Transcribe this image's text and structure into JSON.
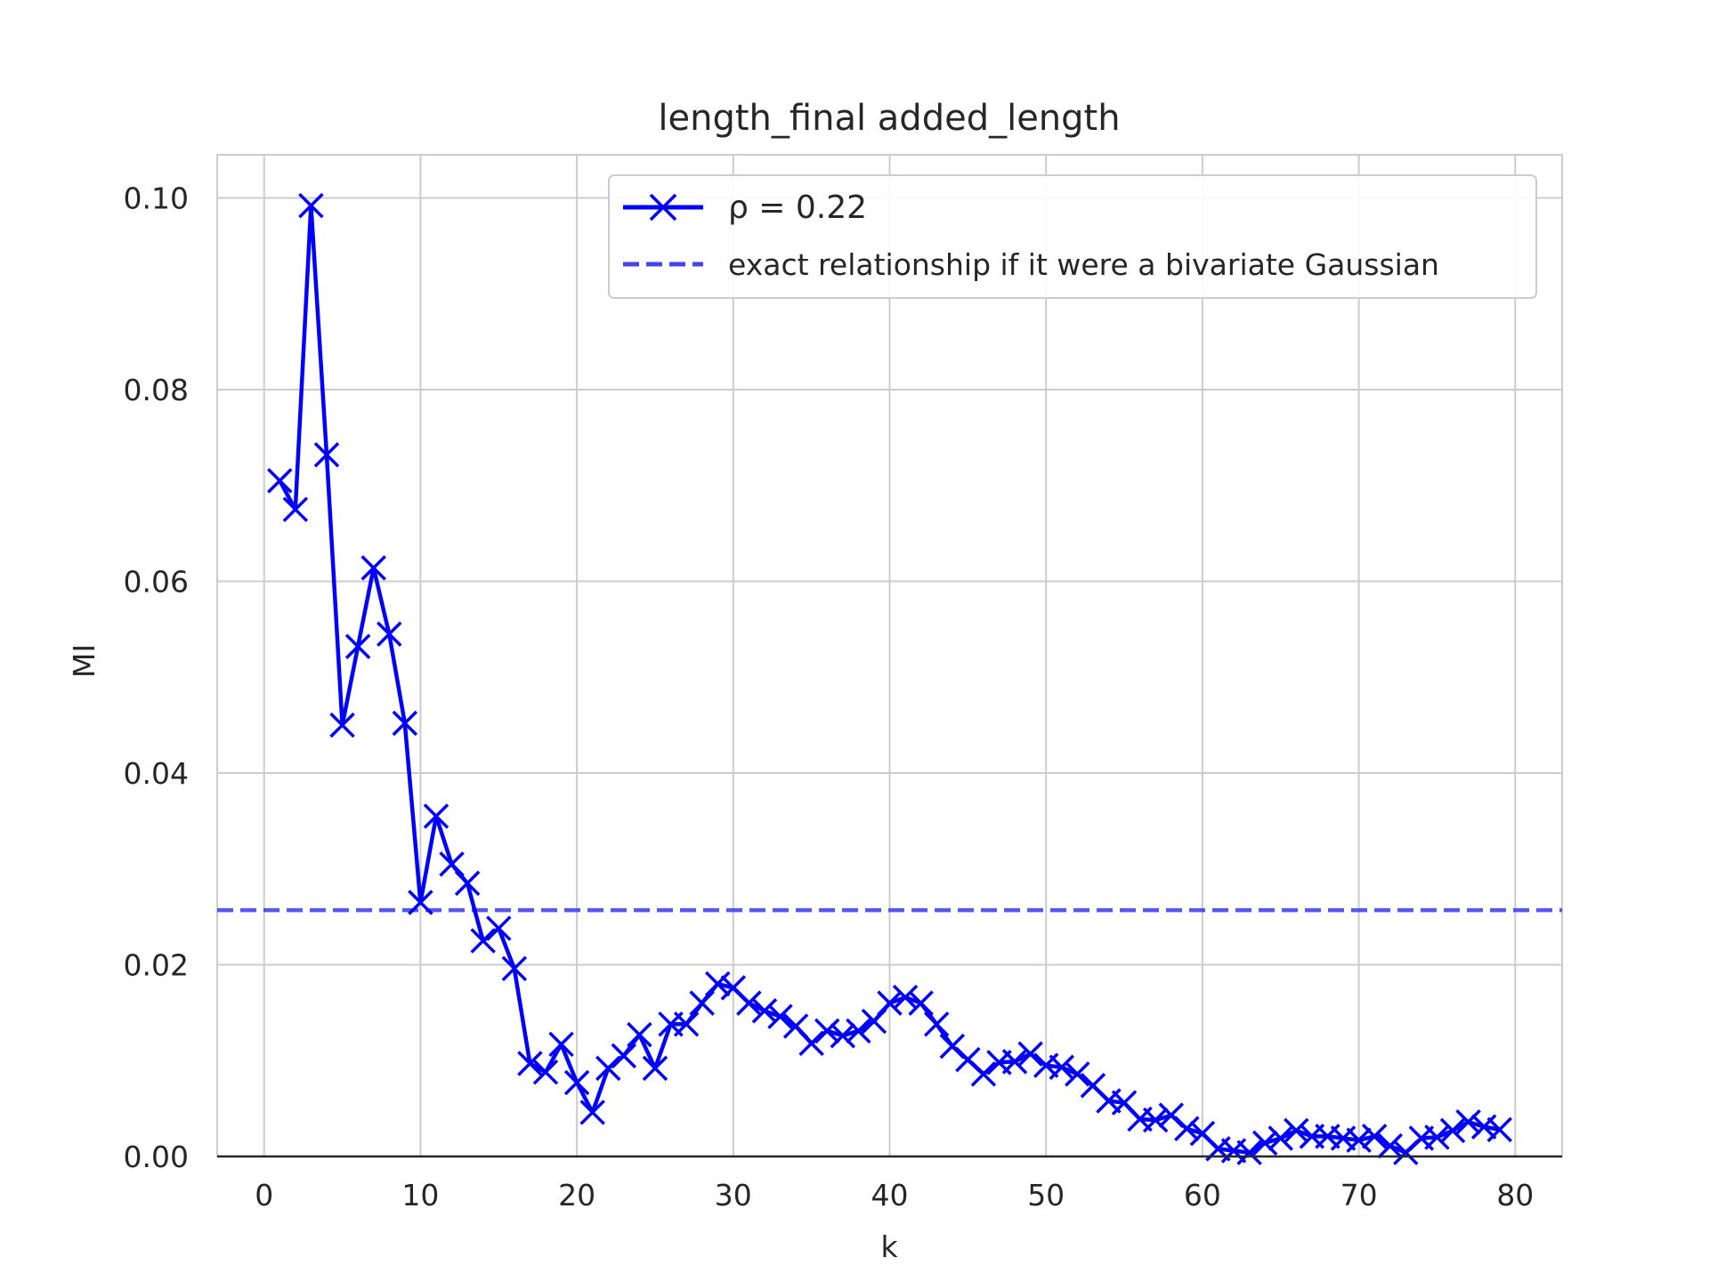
{
  "chart_data": {
    "type": "line",
    "title": "length_final added_length",
    "xlabel": "k",
    "ylabel": "MI",
    "xlim": [
      -3,
      83
    ],
    "ylim": [
      0.0,
      0.1045
    ],
    "xticks": [
      0,
      10,
      20,
      30,
      40,
      50,
      60,
      70,
      80
    ],
    "yticks": [
      0.0,
      0.02,
      0.04,
      0.06,
      0.08,
      0.1
    ],
    "xtick_labels": [
      "0",
      "10",
      "20",
      "30",
      "40",
      "50",
      "60",
      "70",
      "80"
    ],
    "ytick_labels": [
      "0.00",
      "0.02",
      "0.04",
      "0.06",
      "0.08",
      "0.10"
    ],
    "grid": true,
    "legend_position": "top-right",
    "series": [
      {
        "name": "ρ = 0.22",
        "style": "solid line with x markers",
        "color": "#0000ff",
        "x": [
          1,
          2,
          3,
          4,
          5,
          6,
          7,
          8,
          9,
          10,
          11,
          12,
          13,
          14,
          15,
          16,
          17,
          18,
          19,
          20,
          21,
          22,
          23,
          24,
          25,
          26,
          27,
          28,
          29,
          30,
          31,
          32,
          33,
          34,
          35,
          36,
          37,
          38,
          39,
          40,
          41,
          42,
          43,
          44,
          45,
          46,
          47,
          48,
          49,
          50,
          51,
          52,
          53,
          54,
          55,
          56,
          57,
          58,
          59,
          60,
          61,
          62,
          63,
          64,
          65,
          66,
          67,
          68,
          69,
          70,
          71,
          72,
          73,
          74,
          75,
          76,
          77,
          78,
          79
        ],
        "y": [
          0.0705,
          0.0675,
          0.0992,
          0.0732,
          0.045,
          0.0532,
          0.0614,
          0.0545,
          0.0452,
          0.0265,
          0.0355,
          0.0305,
          0.0285,
          0.0225,
          0.0238,
          0.0196,
          0.0097,
          0.0088,
          0.0117,
          0.0077,
          0.0046,
          0.0092,
          0.0105,
          0.0127,
          0.0092,
          0.0138,
          0.0138,
          0.016,
          0.018,
          0.0176,
          0.016,
          0.0152,
          0.0146,
          0.0136,
          0.0118,
          0.0131,
          0.0126,
          0.0131,
          0.0141,
          0.016,
          0.0166,
          0.016,
          0.0138,
          0.0115,
          0.0101,
          0.0086,
          0.0098,
          0.0099,
          0.0107,
          0.0095,
          0.0093,
          0.0086,
          0.0074,
          0.0058,
          0.0056,
          0.0039,
          0.0038,
          0.0043,
          0.0029,
          0.0024,
          0.0008,
          0.0006,
          0.0004,
          0.0014,
          0.0019,
          0.0027,
          0.0021,
          0.0021,
          0.0019,
          0.0017,
          0.0021,
          0.0011,
          0.0004,
          0.0019,
          0.002,
          0.0027,
          0.0036,
          0.0031,
          0.0028
        ]
      },
      {
        "name": "exact relationship if it were a bivariate Gaussian",
        "style": "dashed horizontal line",
        "color": "#4444ee",
        "value": 0.0257
      }
    ]
  }
}
